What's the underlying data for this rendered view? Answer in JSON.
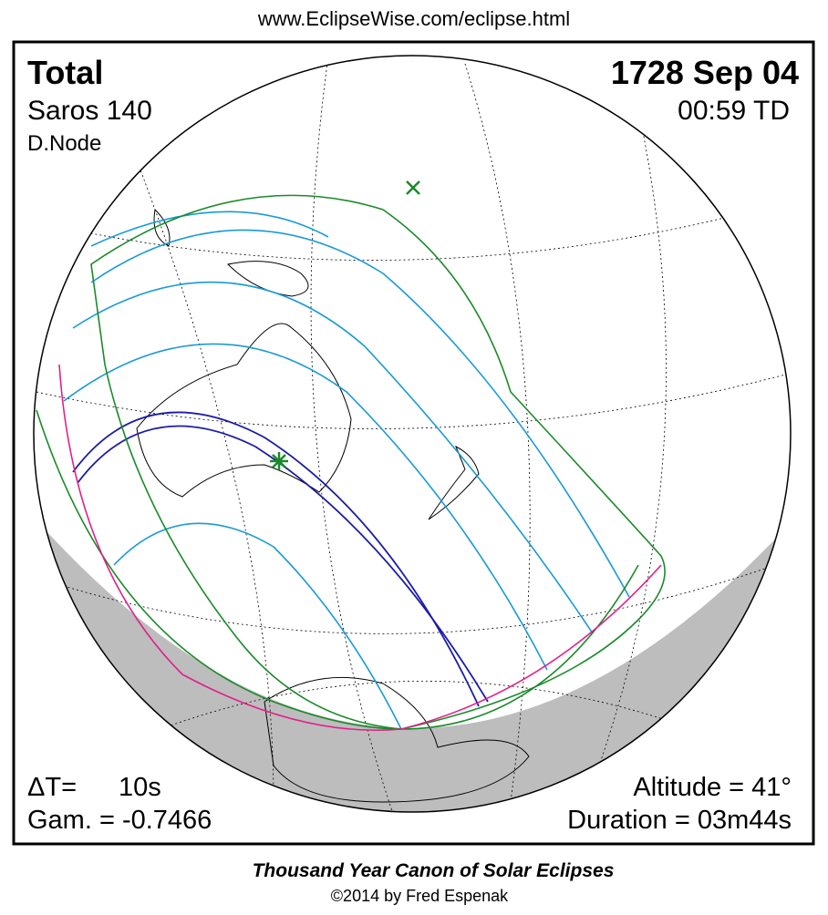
{
  "header": {
    "url": "www.EclipseWise.com/eclipse.html"
  },
  "panel": {
    "eclipse_type": "Total",
    "date": "1728 Sep 04",
    "saros": "Saros 140",
    "time": "00:59 TD",
    "node": "D.Node",
    "delta_t_label": "ΔT=",
    "delta_t_value": "10s",
    "gamma": "Gam. = -0.7466",
    "altitude": "Altitude = 41°",
    "duration": "Duration = 03m44s"
  },
  "footer": {
    "title": "Thousand Year Canon of Solar Eclipses",
    "credit": "©2014 by Fred Espenak"
  }
}
